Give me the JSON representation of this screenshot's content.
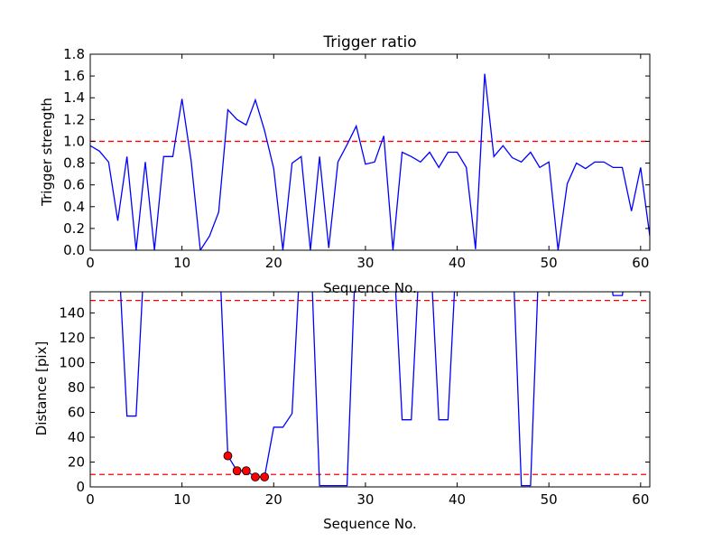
{
  "chart_data": [
    {
      "type": "line",
      "title": "Trigger ratio",
      "xlabel": "Sequence No.",
      "ylabel": "Trigger strength",
      "xlim": [
        0,
        61
      ],
      "ylim": [
        0,
        1.8
      ],
      "xticks": [
        "0",
        "10",
        "20",
        "30",
        "40",
        "50",
        "60"
      ],
      "yticks": [
        "0.0",
        "0.2",
        "0.4",
        "0.6",
        "0.8",
        "1.0",
        "1.2",
        "1.4",
        "1.6",
        "1.8"
      ],
      "grid": false,
      "line_color": "#0000ff",
      "threshold_color": "#ff0000",
      "thresholds": [
        1.0
      ],
      "series": [
        {
          "x": [
            0,
            1,
            2,
            3,
            4,
            5,
            6,
            7,
            8,
            9,
            10,
            11,
            12,
            13,
            14,
            15,
            16,
            17,
            18,
            19,
            20,
            21,
            22,
            23,
            24,
            25,
            26,
            27,
            28,
            29,
            30,
            31,
            32,
            33,
            34,
            35,
            36,
            37,
            38,
            39,
            40,
            41,
            42,
            43,
            44,
            45,
            46,
            47,
            48,
            49,
            50,
            51,
            52,
            53,
            54,
            55,
            56,
            57,
            58,
            59,
            60,
            61
          ],
          "values": [
            0.96,
            0.91,
            0.81,
            0.27,
            0.86,
            0.0,
            0.81,
            0.0,
            0.86,
            0.86,
            1.39,
            0.82,
            0.0,
            0.13,
            0.35,
            1.29,
            1.2,
            1.15,
            1.38,
            1.1,
            0.75,
            0.0,
            0.8,
            0.86,
            0.0,
            0.86,
            0.02,
            0.81,
            0.97,
            1.14,
            0.79,
            0.81,
            1.05,
            0.0,
            0.9,
            0.86,
            0.81,
            0.9,
            0.76,
            0.9,
            0.9,
            0.76,
            0.01,
            1.62,
            0.86,
            0.96,
            0.85,
            0.81,
            0.9,
            0.76,
            0.81,
            0.0,
            0.61,
            0.8,
            0.75,
            0.81,
            0.81,
            0.76,
            0.76,
            0.36,
            0.76,
            0.13
          ]
        }
      ]
    },
    {
      "type": "line",
      "title": "",
      "xlabel": "Sequence No.",
      "ylabel": "Distance [pix]",
      "xlim": [
        0,
        61
      ],
      "ylim": [
        0,
        157
      ],
      "xticks": [
        "0",
        "10",
        "20",
        "30",
        "40",
        "50",
        "60"
      ],
      "yticks": [
        "0",
        "20",
        "40",
        "60",
        "80",
        "100",
        "120",
        "140"
      ],
      "grid": false,
      "line_color": "#0000ff",
      "threshold_color": "#ff0000",
      "thresholds": [
        150,
        10
      ],
      "series": [
        {
          "x": [
            0,
            1,
            2,
            3,
            4,
            5,
            6,
            7,
            8,
            9,
            10,
            11,
            12,
            13,
            14,
            15,
            16,
            17,
            18,
            19,
            20,
            21,
            22,
            23,
            24,
            25,
            26,
            27,
            28,
            29,
            30,
            31,
            32,
            33,
            34,
            35,
            36,
            37,
            38,
            39,
            40,
            41,
            42,
            43,
            44,
            45,
            46,
            47,
            48,
            49,
            50,
            51,
            52,
            53,
            54,
            55,
            56,
            57,
            58,
            59,
            60,
            61
          ],
          "values": [
            null,
            null,
            null,
            null,
            57,
            57,
            null,
            null,
            null,
            null,
            null,
            null,
            null,
            null,
            null,
            25,
            13,
            13,
            8,
            8,
            48,
            48,
            59,
            null,
            null,
            1,
            1,
            1,
            1,
            null,
            null,
            null,
            null,
            null,
            54,
            54,
            null,
            null,
            54,
            54,
            null,
            null,
            null,
            null,
            null,
            null,
            null,
            1,
            1,
            null,
            null,
            null,
            null,
            null,
            null,
            null,
            null,
            154,
            154,
            null,
            null,
            null
          ]
        },
        {
          "name": "markers",
          "x": [
            15,
            16,
            17,
            18,
            19
          ],
          "values": [
            25,
            13,
            13,
            8,
            8
          ],
          "marker_color": "#ff0000"
        }
      ]
    }
  ]
}
